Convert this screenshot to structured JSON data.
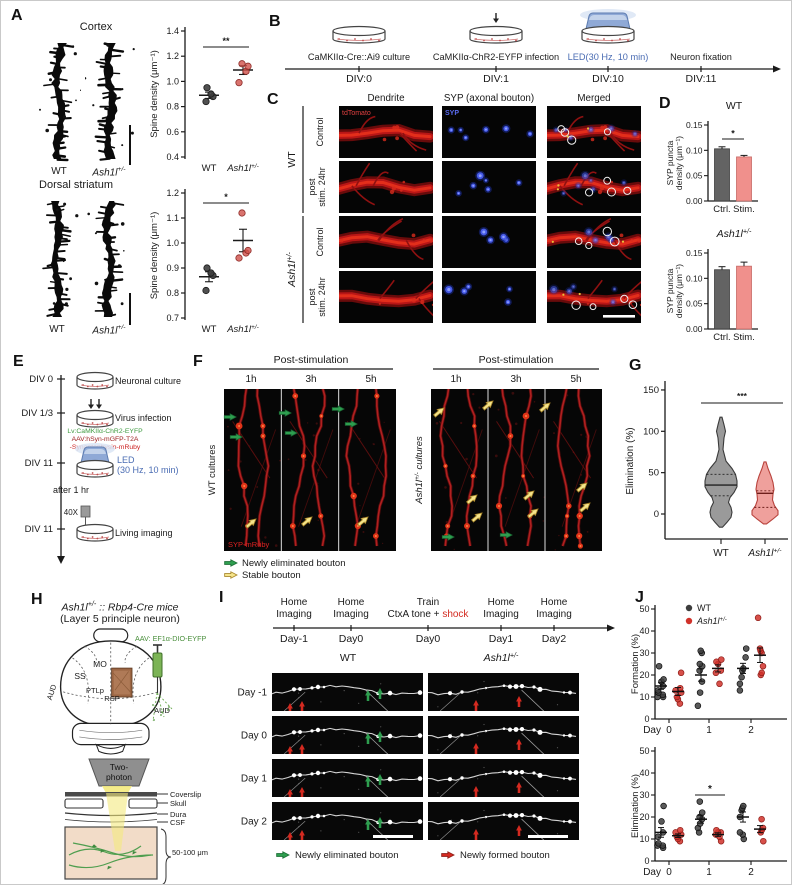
{
  "colors": {
    "accent_red": "#d0504a",
    "marker_gray": "#3d3d3d",
    "bar_gray": "#636363",
    "bar_pink": "#f0908c",
    "led_blue": "#4a6cb3",
    "lv_green": "#3f9b41",
    "aav_dark_red": "#9b1c1c",
    "ruby_red": "#cc2222",
    "arrow_green": "#2e9e4f",
    "arrow_yellow": "#f5e48a",
    "arrow_red": "#d42a20"
  },
  "panelA": {
    "label": "A",
    "cortex": {
      "title": "Cortex",
      "wt_label": "WT",
      "mut_label": "Ash1l^(+/-)"
    },
    "striatum": {
      "title": "Dorsal striatum",
      "wt_label": "WT",
      "mut_label": "Ash1l^(+/-)"
    }
  },
  "panelB": {
    "label": "B",
    "steps": [
      {
        "caption": "CaMKIIα-Cre::Ai9 culture",
        "div": "DIV:0"
      },
      {
        "caption": "CaMKIIα-ChR2-EYFP infection",
        "div": "DIV:1"
      },
      {
        "caption": "LED(30 Hz, 10 min)",
        "div": "DIV:10"
      },
      {
        "caption": "Neuron fixation",
        "div": "DIV:11"
      }
    ]
  },
  "panelC": {
    "label": "C",
    "col_headers": [
      "Dendrite",
      "SYP (axonal bouton)",
      "Merged"
    ],
    "row_groups": [
      "WT",
      "Ash1l^(+/-)"
    ],
    "row_labels": [
      [
        "Control"
      ],
      [
        "post",
        "stim. 24hr"
      ],
      [
        "Control"
      ],
      [
        "post",
        "stim. 24hr"
      ]
    ],
    "img_tags": {
      "tdtomato": "tdTomato",
      "syp": "SYP"
    }
  },
  "panelD": {
    "label": "D"
  },
  "panelE": {
    "label": "E",
    "steps": [
      {
        "div": "DIV 0",
        "caption": "Neuronal culture"
      },
      {
        "div": "DIV 1/3",
        "caption": "Virus infection"
      },
      {
        "div": "DIV 11",
        "caption_line1": "LED",
        "caption_line2": "(30 Hz, 10 min)"
      },
      {
        "div": "DIV 11",
        "caption": "Living imaging"
      }
    ],
    "virus_lines": [
      {
        "text": "Lv:CaMKIIα-ChR2-EYFP",
        "color": "#3f9b41"
      },
      {
        "text": "AAV:hSyn-mGFP-T2A",
        "color": "#9b1c1c"
      },
      {
        "text": "-Synaptophysin-mRuby",
        "color": "#cc2222"
      }
    ],
    "after_label": "after 1 hr",
    "objective_label": "40X"
  },
  "panelF": {
    "label": "F",
    "header": "Post-stimulation",
    "timepoints": [
      "1h",
      "3h",
      "5h"
    ],
    "left_group": "WT cultures",
    "right_group": "Ash1l^(+/-) cultures",
    "img_tag": "SYP-mRuby",
    "legend": [
      {
        "text": "Newly eliminated bouton",
        "color": "green"
      },
      {
        "text": "Stable bouton",
        "color": "yellow"
      }
    ]
  },
  "panelG": {
    "label": "G"
  },
  "panelH": {
    "label": "H",
    "title1": "Ash1l^(+/-) :: Rbp4-Cre mice",
    "title2": "(Layer 5 principle neuron)",
    "aav_label": "AAV: EF1α-DIO-EYFP",
    "brain_regions": [
      "MO",
      "SS",
      "PTLp",
      "RSP",
      "AUD",
      "AUD"
    ],
    "scope_line1": "Two-",
    "scope_line2": "photon",
    "layers": [
      "Coverslip",
      "Skull",
      "Dura",
      "CSF"
    ],
    "depth": "50-100 μm"
  },
  "panelI": {
    "label": "I",
    "timeline": [
      {
        "line1": "Home",
        "line2": "Imaging",
        "day": "Day-1"
      },
      {
        "line1": "Home",
        "line2": "Imaging",
        "day": "Day0"
      },
      {
        "line1": "Train",
        "line2_pre": "CtxA tone + ",
        "line2_red": "shock",
        "day": "Day0"
      },
      {
        "line1": "Home",
        "line2": "Imaging",
        "day": "Day1"
      },
      {
        "line1": "Home",
        "line2": "Imaging",
        "day": "Day2"
      }
    ],
    "col_titles": [
      "WT",
      "Ash1l^(+/-)"
    ],
    "row_labels": [
      "Day -1",
      "Day 0",
      "Day 1",
      "Day 2"
    ],
    "legend": [
      {
        "text": "Newly eliminated bouton",
        "color": "green"
      },
      {
        "text": "Newly formed bouton",
        "color": "red"
      }
    ]
  },
  "panelJ": {
    "label": "J"
  },
  "chart_data": [
    {
      "id": "cortex_spine",
      "type": "scatter",
      "title": "Cortex",
      "ylabel": "Spine density (μm⁻¹)",
      "ylim": [
        0.4,
        1.4
      ],
      "yticks": [
        "0.4",
        "0.6",
        "0.8",
        "1.0",
        "1.2",
        "1.4"
      ],
      "sig": "**",
      "groups": [
        {
          "name": "WT",
          "values": [
            0.84,
            0.88,
            0.9,
            0.95
          ],
          "mean": 0.89,
          "sem": 0.025
        },
        {
          "name": "Ash1l^(+/-)",
          "values": [
            0.99,
            1.08,
            1.12,
            1.14
          ],
          "mean": 1.09,
          "sem": 0.035
        }
      ]
    },
    {
      "id": "striatum_spine",
      "type": "scatter",
      "title": "Dorsal striatum",
      "ylabel": "Spine density (μm⁻¹)",
      "ylim": [
        0.7,
        1.2
      ],
      "yticks": [
        "0.7",
        "0.8",
        "0.9",
        "1.0",
        "1.1",
        "1.2"
      ],
      "sig": "*",
      "groups": [
        {
          "name": "WT",
          "values": [
            0.81,
            0.87,
            0.88,
            0.9
          ],
          "mean": 0.865,
          "sem": 0.02
        },
        {
          "name": "Ash1l^(+/-)",
          "values": [
            0.94,
            0.96,
            0.97,
            1.12
          ],
          "mean": 1.01,
          "sem": 0.045
        }
      ]
    },
    {
      "id": "syp_wt",
      "type": "bar",
      "title": "WT",
      "title_italic": false,
      "ylabel1": "SYP puncta",
      "ylabel2": "density (μm⁻¹)",
      "ylim": [
        0,
        0.15
      ],
      "yticks": [
        "0.00",
        "0.05",
        "0.10",
        "0.15"
      ],
      "categories": [
        "Ctrl.",
        "Stim."
      ],
      "values": [
        0.103,
        0.087
      ],
      "errors": [
        0.004,
        0.003
      ],
      "sig": "*"
    },
    {
      "id": "syp_mut",
      "type": "bar",
      "title": "Ash1l^(+/-)",
      "title_italic": true,
      "ylabel1": "SYP puncta",
      "ylabel2": "density (μm⁻¹)",
      "ylim": [
        0,
        0.15
      ],
      "yticks": [
        "0.00",
        "0.05",
        "0.10",
        "0.15"
      ],
      "categories": [
        "Ctrl.",
        "Stim."
      ],
      "values": [
        0.117,
        0.124
      ],
      "errors": [
        0.006,
        0.008
      ],
      "sig": null
    },
    {
      "id": "elim_violin",
      "type": "violin",
      "ylabel": "Elimination (%)",
      "ylim": [
        -25,
        160
      ],
      "yticks": [
        0,
        50,
        100,
        150
      ],
      "sig": "***",
      "groups": [
        {
          "name": "WT",
          "median": 35,
          "q1": 22,
          "q3": 48,
          "min": -15,
          "max": 117
        },
        {
          "name": "Ash1l^(+/-)",
          "median": 25,
          "q1": 8,
          "q3": 28,
          "min": -12,
          "max": 63
        }
      ]
    },
    {
      "id": "formation",
      "type": "grouped_scatter",
      "ylabel": "Formation (%)",
      "xlabel": "Day",
      "ylim": [
        0,
        50
      ],
      "yticks": [
        0,
        10,
        20,
        30,
        40,
        50
      ],
      "categories": [
        "0",
        "1",
        "2"
      ],
      "series": [
        {
          "name": "WT",
          "points": [
            [
              10,
              10,
              11,
              12,
              13,
              15,
              17,
              18,
              24
            ],
            [
              6,
              12,
              17,
              22,
              24,
              25,
              30,
              31
            ],
            [
              13,
              16,
              19,
              22,
              23,
              28,
              32
            ]
          ],
          "means": [
            15,
            20,
            23
          ],
          "sems": [
            1.5,
            2.8,
            2.3
          ]
        },
        {
          "name": "Ash1l^(+/-)",
          "points": [
            [
              7,
              9,
              10,
              12,
              13,
              14,
              21
            ],
            [
              16,
              21,
              22,
              25,
              26,
              27
            ],
            [
              20,
              21,
              24,
              30,
              31,
              32,
              46
            ]
          ],
          "means": [
            12.5,
            23,
            29
          ],
          "sems": [
            1.8,
            1.6,
            3.3
          ]
        }
      ],
      "sig": null
    },
    {
      "id": "elimination",
      "type": "grouped_scatter",
      "ylabel": "Elimination (%)",
      "xlabel": "Day",
      "ylim": [
        0,
        50
      ],
      "yticks": [
        0,
        10,
        20,
        30,
        40,
        50
      ],
      "categories": [
        "0",
        "1",
        "2"
      ],
      "series": [
        {
          "name": "WT",
          "points": [
            [
              6,
              7,
              7,
              8,
              11,
              13,
              18,
              25
            ],
            [
              13,
              15,
              17,
              19,
              20,
              22,
              27
            ],
            [
              10,
              12,
              13,
              20,
              23,
              24,
              25
            ]
          ],
          "means": [
            13,
            19,
            20
          ],
          "sems": [
            2.2,
            1.8,
            2.3
          ]
        },
        {
          "name": "Ash1l^(+/-)",
          "points": [
            [
              9,
              10,
              11,
              12,
              13,
              14
            ],
            [
              9,
              11,
              12,
              13,
              13,
              14
            ],
            [
              9,
              13,
              14,
              15,
              19
            ]
          ],
          "means": [
            11.5,
            12,
            14.5
          ],
          "sems": [
            0.8,
            0.8,
            1.6
          ]
        }
      ],
      "sig": {
        "cat": 1,
        "label": "*"
      }
    }
  ]
}
